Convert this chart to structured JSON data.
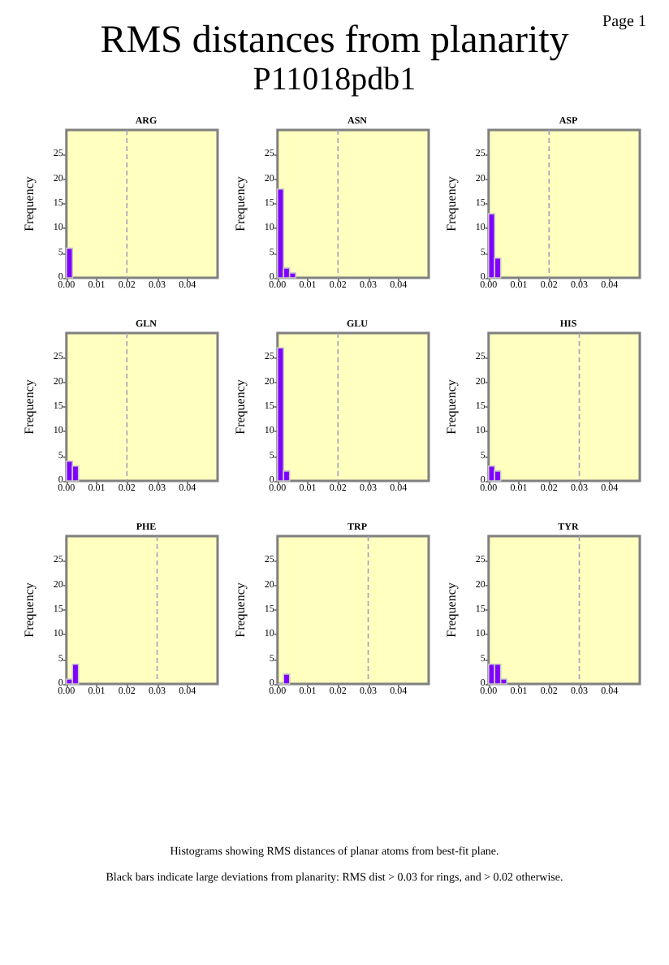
{
  "chart_data": [
    {
      "type": "histogram",
      "title": "ARG",
      "ylabel": "Frequency",
      "bins": [
        0,
        0.002
      ],
      "values": [
        6
      ],
      "color": "#7f00ff",
      "xlim": [
        0,
        0.05
      ],
      "ylim": [
        0,
        30
      ],
      "xticks": [
        {
          "value": 0,
          "label": "0.00"
        },
        {
          "value": 0.01,
          "label": "0.01"
        },
        {
          "value": 0.02,
          "label": "0.02"
        },
        {
          "value": 0.03,
          "label": "0.03"
        },
        {
          "value": 0.04,
          "label": "0.04"
        }
      ],
      "yticks": [
        0,
        5,
        10,
        15,
        20,
        25
      ],
      "ref_lines": [
        {
          "axis": "x",
          "value": 0.02,
          "color": "#a0a0c0",
          "line_style": "dashed"
        }
      ],
      "grid": false,
      "annotations": [
        "RMS distances from planarity",
        "P11018pdb1",
        "Page 1",
        "Histograms showing RMS distances of planar atoms from best-fit plane.",
        "Black bars indicate large deviations from planarity: RMS dist > 0.03 for rings, and > 0.02 otherwise."
      ]
    },
    {
      "type": "histogram",
      "title": "ASN",
      "ylabel": "Frequency",
      "bins": [
        0,
        0.002,
        0.004,
        0.006
      ],
      "values": [
        18,
        2,
        1
      ],
      "color": "#7f00ff",
      "xlim": [
        0,
        0.05
      ],
      "ylim": [
        0,
        30
      ],
      "xticks": [
        {
          "value": 0,
          "label": "0.00"
        },
        {
          "value": 0.01,
          "label": "0.01"
        },
        {
          "value": 0.02,
          "label": "0.02"
        },
        {
          "value": 0.03,
          "label": "0.03"
        },
        {
          "value": 0.04,
          "label": "0.04"
        }
      ],
      "yticks": [
        0,
        5,
        10,
        15,
        20,
        25
      ],
      "ref_lines": [
        {
          "axis": "x",
          "value": 0.02,
          "color": "#a0a0c0",
          "line_style": "dashed"
        }
      ],
      "grid": false
    },
    {
      "type": "histogram",
      "title": "ASP",
      "ylabel": "Frequency",
      "bins": [
        0,
        0.002,
        0.004
      ],
      "values": [
        13,
        4
      ],
      "color": "#7f00ff",
      "xlim": [
        0,
        0.05
      ],
      "ylim": [
        0,
        30
      ],
      "xticks": [
        {
          "value": 0,
          "label": "0.00"
        },
        {
          "value": 0.01,
          "label": "0.01"
        },
        {
          "value": 0.02,
          "label": "0.02"
        },
        {
          "value": 0.03,
          "label": "0.03"
        },
        {
          "value": 0.04,
          "label": "0.04"
        }
      ],
      "yticks": [
        0,
        5,
        10,
        15,
        20,
        25
      ],
      "ref_lines": [
        {
          "axis": "x",
          "value": 0.02,
          "color": "#a0a0c0",
          "line_style": "dashed"
        }
      ],
      "grid": false
    },
    {
      "type": "histogram",
      "title": "GLN",
      "ylabel": "Frequency",
      "bins": [
        0,
        0.002,
        0.004
      ],
      "values": [
        4,
        3
      ],
      "color": "#7f00ff",
      "xlim": [
        0,
        0.05
      ],
      "ylim": [
        0,
        30
      ],
      "xticks": [
        {
          "value": 0,
          "label": "0.00"
        },
        {
          "value": 0.01,
          "label": "0.01"
        },
        {
          "value": 0.02,
          "label": "0.02"
        },
        {
          "value": 0.03,
          "label": "0.03"
        },
        {
          "value": 0.04,
          "label": "0.04"
        }
      ],
      "yticks": [
        0,
        5,
        10,
        15,
        20,
        25
      ],
      "ref_lines": [
        {
          "axis": "x",
          "value": 0.02,
          "color": "#a0a0c0",
          "line_style": "dashed"
        }
      ],
      "grid": false
    },
    {
      "type": "histogram",
      "title": "GLU",
      "ylabel": "Frequency",
      "bins": [
        0,
        0.002,
        0.004
      ],
      "values": [
        27,
        2
      ],
      "color": "#7f00ff",
      "xlim": [
        0,
        0.05
      ],
      "ylim": [
        0,
        30
      ],
      "xticks": [
        {
          "value": 0,
          "label": "0.00"
        },
        {
          "value": 0.01,
          "label": "0.01"
        },
        {
          "value": 0.02,
          "label": "0.02"
        },
        {
          "value": 0.03,
          "label": "0.03"
        },
        {
          "value": 0.04,
          "label": "0.04"
        }
      ],
      "yticks": [
        0,
        5,
        10,
        15,
        20,
        25
      ],
      "ref_lines": [
        {
          "axis": "x",
          "value": 0.02,
          "color": "#a0a0c0",
          "line_style": "dashed"
        }
      ],
      "grid": false
    },
    {
      "type": "histogram",
      "title": "HIS",
      "ylabel": "Frequency",
      "bins": [
        0,
        0.002,
        0.004
      ],
      "values": [
        3,
        2
      ],
      "color": "#7f00ff",
      "xlim": [
        0,
        0.05
      ],
      "ylim": [
        0,
        30
      ],
      "xticks": [
        {
          "value": 0,
          "label": "0.00"
        },
        {
          "value": 0.01,
          "label": "0.01"
        },
        {
          "value": 0.02,
          "label": "0.02"
        },
        {
          "value": 0.03,
          "label": "0.03"
        },
        {
          "value": 0.04,
          "label": "0.04"
        }
      ],
      "yticks": [
        0,
        5,
        10,
        15,
        20,
        25
      ],
      "ref_lines": [
        {
          "axis": "x",
          "value": 0.03,
          "color": "#a0a0c0",
          "line_style": "dashed"
        }
      ],
      "grid": false
    },
    {
      "type": "histogram",
      "title": "PHE",
      "ylabel": "Frequency",
      "bins": [
        0,
        0.002,
        0.004
      ],
      "values": [
        1,
        4
      ],
      "color": "#7f00ff",
      "xlim": [
        0,
        0.05
      ],
      "ylim": [
        0,
        30
      ],
      "xticks": [
        {
          "value": 0,
          "label": "0.00"
        },
        {
          "value": 0.01,
          "label": "0.01"
        },
        {
          "value": 0.02,
          "label": "0.02"
        },
        {
          "value": 0.03,
          "label": "0.03"
        },
        {
          "value": 0.04,
          "label": "0.04"
        }
      ],
      "yticks": [
        0,
        5,
        10,
        15,
        20,
        25
      ],
      "ref_lines": [
        {
          "axis": "x",
          "value": 0.03,
          "color": "#a0a0c0",
          "line_style": "dashed"
        }
      ],
      "grid": false
    },
    {
      "type": "histogram",
      "title": "TRP",
      "ylabel": "Frequency",
      "bins": [
        0,
        0.002,
        0.004
      ],
      "values": [
        0,
        2
      ],
      "color": "#7f00ff",
      "xlim": [
        0,
        0.05
      ],
      "ylim": [
        0,
        30
      ],
      "xticks": [
        {
          "value": 0,
          "label": "0.00"
        },
        {
          "value": 0.01,
          "label": "0.01"
        },
        {
          "value": 0.02,
          "label": "0.02"
        },
        {
          "value": 0.03,
          "label": "0.03"
        },
        {
          "value": 0.04,
          "label": "0.04"
        }
      ],
      "yticks": [
        0,
        5,
        10,
        15,
        20,
        25
      ],
      "ref_lines": [
        {
          "axis": "x",
          "value": 0.03,
          "color": "#a0a0c0",
          "line_style": "dashed"
        }
      ],
      "grid": false
    },
    {
      "type": "histogram",
      "title": "TYR",
      "ylabel": "Frequency",
      "bins": [
        0,
        0.002,
        0.004,
        0.006
      ],
      "values": [
        4,
        4,
        1
      ],
      "color": "#7f00ff",
      "xlim": [
        0,
        0.05
      ],
      "ylim": [
        0,
        30
      ],
      "xticks": [
        {
          "value": 0,
          "label": "0.00"
        },
        {
          "value": 0.01,
          "label": "0.01"
        },
        {
          "value": 0.02,
          "label": "0.02"
        },
        {
          "value": 0.03,
          "label": "0.03"
        },
        {
          "value": 0.04,
          "label": "0.04"
        }
      ],
      "yticks": [
        0,
        5,
        10,
        15,
        20,
        25
      ],
      "ref_lines": [
        {
          "axis": "x",
          "value": 0.03,
          "color": "#a0a0c0",
          "line_style": "dashed"
        }
      ],
      "grid": false
    }
  ]
}
